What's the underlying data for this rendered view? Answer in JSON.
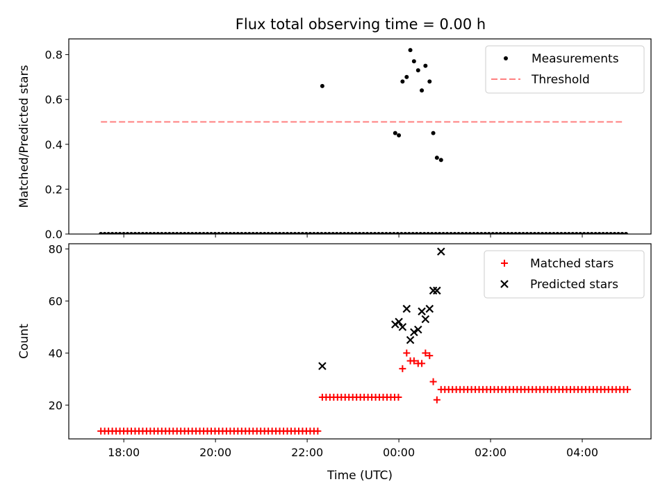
{
  "title": "Flux total observing time = 0.00 h",
  "chart_data": [
    {
      "type": "scatter",
      "ylabel": "Matched/Predicted stars",
      "xlim": [
        -7.2,
        5.5
      ],
      "ylim": [
        0,
        0.87
      ],
      "yticks": [
        0.0,
        0.2,
        0.4,
        0.6,
        0.8
      ],
      "ytick_labels": [
        "0.0",
        "0.2",
        "0.4",
        "0.6",
        "0.8"
      ],
      "xticks": [
        -6,
        -4,
        -2,
        0,
        2,
        4
      ],
      "xtick_labels": [
        "",
        "",
        "",
        "",
        "",
        ""
      ],
      "legend": {
        "position": "top-right",
        "entries": [
          "Measurements",
          "Threshold"
        ]
      },
      "threshold": {
        "name": "Threshold",
        "y": 0.5,
        "x": [
          -6.5,
          4.9
        ],
        "color": "#ff7f7f"
      },
      "series": [
        {
          "name": "Measurements",
          "marker": "dot",
          "color": "#000000",
          "x_zero": {
            "start": -6.5,
            "end": 4.95,
            "step": 0.083
          },
          "points": [
            [
              -1.67,
              0.66
            ],
            [
              -0.08,
              0.45
            ],
            [
              0.0,
              0.44
            ],
            [
              0.08,
              0.68
            ],
            [
              0.17,
              0.7
            ],
            [
              0.25,
              0.82
            ],
            [
              0.33,
              0.77
            ],
            [
              0.42,
              0.73
            ],
            [
              0.5,
              0.64
            ],
            [
              0.58,
              0.75
            ],
            [
              0.67,
              0.68
            ],
            [
              0.75,
              0.45
            ],
            [
              0.83,
              0.34
            ],
            [
              0.92,
              0.33
            ]
          ]
        }
      ]
    },
    {
      "type": "scatter",
      "xlabel": "Time (UTC)",
      "ylabel": "Count",
      "xlim": [
        -7.2,
        5.5
      ],
      "ylim": [
        7,
        82
      ],
      "yticks": [
        20,
        40,
        60,
        80
      ],
      "ytick_labels": [
        "20",
        "40",
        "60",
        "80"
      ],
      "xticks": [
        -6,
        -4,
        -2,
        0,
        2,
        4
      ],
      "xtick_labels": [
        "18:00",
        "20:00",
        "22:00",
        "00:00",
        "02:00",
        "04:00"
      ],
      "legend": {
        "position": "top-right",
        "entries": [
          "Matched stars",
          "Predicted stars"
        ]
      },
      "series": [
        {
          "name": "Matched stars",
          "marker": "plus",
          "color": "#ff0000",
          "runs": [
            {
              "start": -6.5,
              "end": -1.75,
              "step": 0.083,
              "y": 10
            },
            {
              "start": -1.67,
              "end": 0.0,
              "step": 0.083,
              "y": 23
            },
            {
              "start": 0.92,
              "end": 4.95,
              "step": 0.083,
              "y": 26
            }
          ],
          "points": [
            [
              0.08,
              34
            ],
            [
              0.17,
              40
            ],
            [
              0.25,
              37
            ],
            [
              0.33,
              37
            ],
            [
              0.42,
              36
            ],
            [
              0.5,
              36
            ],
            [
              0.58,
              40
            ],
            [
              0.67,
              39
            ],
            [
              0.75,
              29
            ],
            [
              0.83,
              22
            ]
          ]
        },
        {
          "name": "Predicted stars",
          "marker": "x",
          "color": "#000000",
          "points": [
            [
              -1.67,
              35
            ],
            [
              -0.08,
              51
            ],
            [
              0.0,
              52
            ],
            [
              0.08,
              50
            ],
            [
              0.17,
              57
            ],
            [
              0.25,
              45
            ],
            [
              0.33,
              48
            ],
            [
              0.42,
              49
            ],
            [
              0.5,
              56
            ],
            [
              0.58,
              53
            ],
            [
              0.67,
              57
            ],
            [
              0.75,
              64
            ],
            [
              0.83,
              64
            ],
            [
              0.92,
              79
            ]
          ]
        }
      ]
    }
  ]
}
